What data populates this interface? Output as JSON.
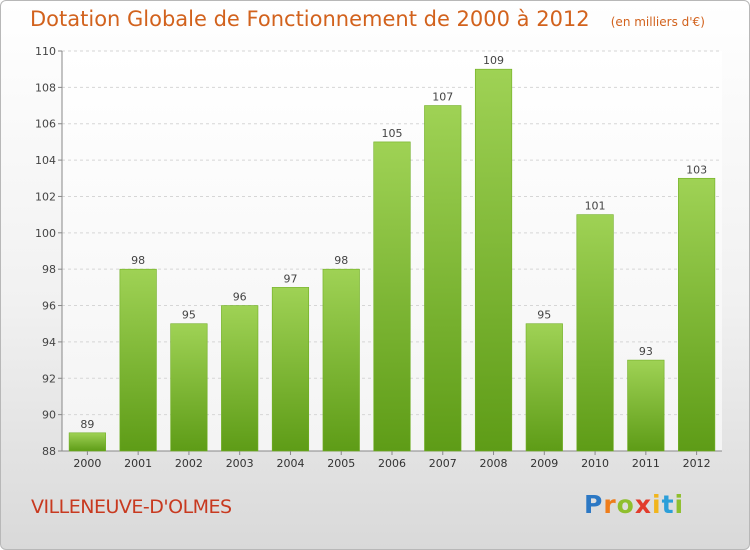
{
  "title": "Dotation Globale de Fonctionnement de 2000 à 2012",
  "subtitle": "(en milliers d'€)",
  "commune": "VILLENEUVE-D'OLMES",
  "logo": "Proxiti",
  "colors": {
    "title": "#d2621d",
    "commune": "#c8391f",
    "bar_top": "#9fd255",
    "bar_bottom": "#5e9c17"
  },
  "chart_data": {
    "type": "bar",
    "title": "Dotation Globale de Fonctionnement de 2000 à 2012",
    "subtitle": "(en milliers d'€)",
    "categories": [
      "2000",
      "2001",
      "2002",
      "2003",
      "2004",
      "2005",
      "2006",
      "2007",
      "2008",
      "2009",
      "2010",
      "2011",
      "2012"
    ],
    "values": [
      89,
      98,
      95,
      96,
      97,
      98,
      105,
      107,
      109,
      95,
      101,
      93,
      103
    ],
    "ylim": [
      88,
      110
    ],
    "yticks": [
      88,
      90,
      92,
      94,
      96,
      98,
      100,
      102,
      104,
      106,
      108,
      110
    ],
    "xlabel": "",
    "ylabel": "",
    "grid": true,
    "legend": "none"
  }
}
